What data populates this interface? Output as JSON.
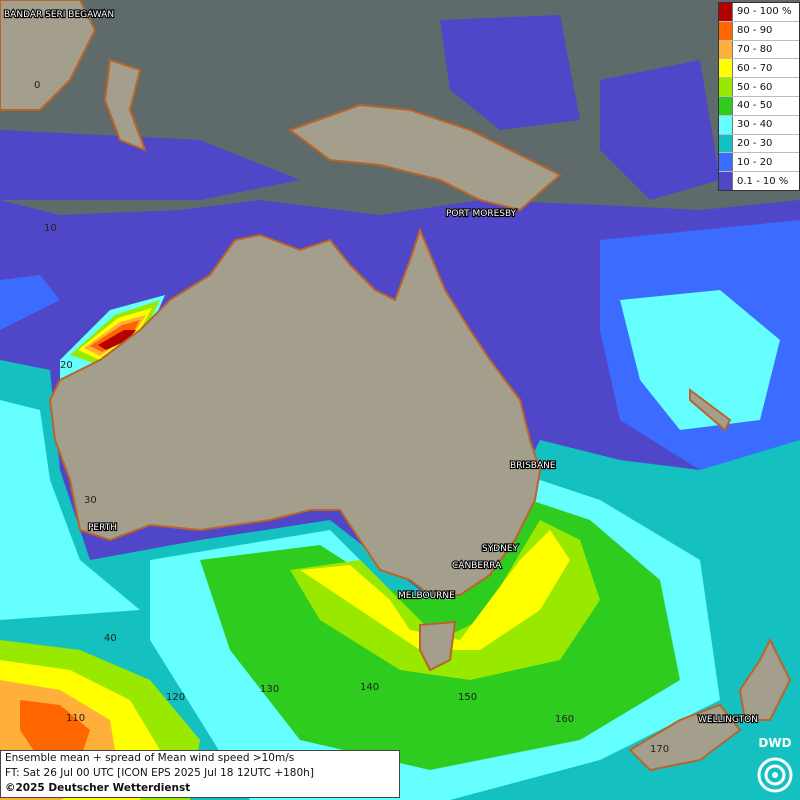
{
  "legend": [
    {
      "label": "90 - 100 %",
      "color": "#b50000"
    },
    {
      "label": "80 - 90",
      "color": "#ff6600"
    },
    {
      "label": "70 - 80",
      "color": "#ffb03b"
    },
    {
      "label": "60 - 70",
      "color": "#ffff00"
    },
    {
      "label": "50 - 60",
      "color": "#99e800"
    },
    {
      "label": "40 - 50",
      "color": "#2ecc1f"
    },
    {
      "label": "30 - 40",
      "color": "#66ffff"
    },
    {
      "label": "20 - 30",
      "color": "#14c0c0"
    },
    {
      "label": "10 - 20",
      "color": "#3b6cff"
    },
    {
      "label": "0.1 - 10 %",
      "color": "#4f46c8"
    }
  ],
  "cities": [
    {
      "name": "BANDAR SERI BEGAWAN"
    },
    {
      "name": "PORT MORESBY"
    },
    {
      "name": "BRISBANE"
    },
    {
      "name": "PERTH"
    },
    {
      "name": "SYDNEY"
    },
    {
      "name": "CANBERRA"
    },
    {
      "name": "MELBOURNE"
    },
    {
      "name": "WELLINGTON"
    }
  ],
  "lat_labels": [
    "0",
    "10",
    "20",
    "30",
    "40"
  ],
  "lon_labels": [
    "110",
    "120",
    "130",
    "140",
    "150",
    "160",
    "170"
  ],
  "caption": {
    "line1": "Ensemble mean + spread of Mean wind speed >10m/s",
    "line2": "FT: Sat 26 Jul 00 UTC [ICON EPS 2025 Jul 18 12UTC +180h]",
    "line3": "©2025 Deutscher Wetterdienst"
  },
  "logo_text": "DWD",
  "colors": {
    "ocean": "#5f6b6b",
    "land": "#a49f8c",
    "coast": "#b9652a"
  }
}
